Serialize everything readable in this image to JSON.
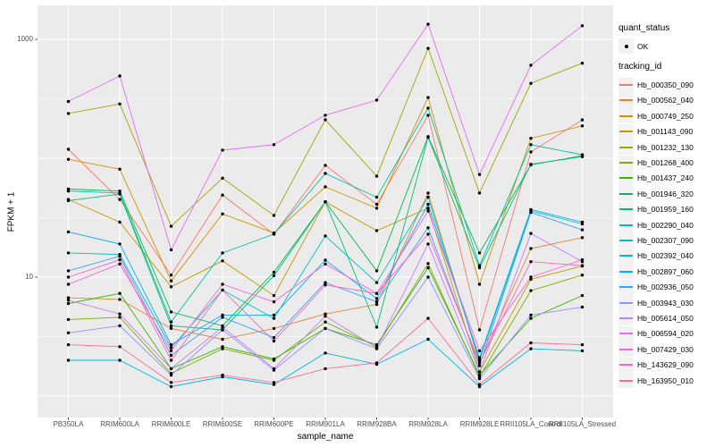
{
  "figure": {
    "background": "#FFFFFF",
    "panel_background": "#EBEBEB",
    "gridline_color": "#FFFFFF",
    "tick_color": "#333333",
    "tick_label_color": "#4D4D4D",
    "point_color": "#000000"
  },
  "legend": {
    "quant_status_title": "quant_status",
    "ok_label": "OK",
    "tracking_id_title": "tracking_id"
  },
  "chart_data": {
    "type": "line",
    "title": "",
    "x_axis_label": "sample_name",
    "y_axis_label": "FPKM + 1",
    "y_scale": "log10",
    "y_ticks": [
      {
        "label": "1000",
        "value": 1000
      },
      {
        "label": "10",
        "value": 10
      }
    ],
    "y_major_gridlines": [
      1,
      10,
      100,
      1000
    ],
    "y_minor_gridlines": [
      3.162,
      31.62,
      316.2
    ],
    "legend_position": "right",
    "quant_status": "OK",
    "categories": [
      "PB350LA",
      "RRIM600LA",
      "RRIM600LE",
      "RRIM600SE",
      "RRIM600PE",
      "RRIM901LA",
      "RRIM928BA",
      "RRIM928LA",
      "RRIM928LE",
      "RRII105LA_Control",
      "RRII105LA_Stressed"
    ],
    "series": [
      {
        "name": "Hb_000350_090",
        "color": "#F8766D",
        "values": [
          119,
          45,
          10.4,
          49,
          23,
          87,
          41,
          230,
          3.6,
          113,
          210
        ]
      },
      {
        "name": "Hb_000562_040",
        "color": "#EA8331",
        "values": [
          6.7,
          6.5,
          3.7,
          3.0,
          3.7,
          4.9,
          5.9,
          51,
          1.9,
          17.4,
          21.5
        ]
      },
      {
        "name": "Hb_000749_250",
        "color": "#D89000",
        "values": [
          98,
          81,
          9.3,
          34,
          23.5,
          57.5,
          38,
          324,
          8.7,
          147,
          187
        ]
      },
      {
        "name": "Hb_001143_090",
        "color": "#C09B00",
        "values": [
          45,
          29,
          8.3,
          13.7,
          7.0,
          43,
          24.6,
          38,
          1.6,
          9.6,
          12.4
        ]
      },
      {
        "name": "Hb_001232_130",
        "color": "#A3A500",
        "values": [
          238,
          286,
          26.8,
          68,
          33,
          211,
          70.6,
          840,
          51,
          427,
          630
        ]
      },
      {
        "name": "Hb_001268_400",
        "color": "#7CAE00",
        "values": [
          4.4,
          4.6,
          1.55,
          2.5,
          2.0,
          4.2,
          2.6,
          13,
          1.45,
          7.7,
          10.4
        ]
      },
      {
        "name": "Hb_001437_240",
        "color": "#39B600",
        "values": [
          6.0,
          7.3,
          1.7,
          2.6,
          2.05,
          3.7,
          2.7,
          12,
          1.5,
          4.5,
          7.0
        ]
      },
      {
        "name": "Hb_001946_320",
        "color": "#00BB4E",
        "values": [
          55,
          53,
          5.1,
          3.9,
          11,
          43,
          11.3,
          152,
          16,
          88,
          105
        ]
      },
      {
        "name": "Hb_001959_160",
        "color": "#00BF7D",
        "values": [
          44,
          50,
          3.9,
          3.6,
          10.3,
          43,
          3.8,
          150,
          12,
          89,
          103
        ]
      },
      {
        "name": "Hb_002290_040",
        "color": "#00C1A3",
        "values": [
          53,
          51,
          4.2,
          16,
          23,
          74.5,
          47,
          264,
          12.5,
          130,
          107
        ]
      },
      {
        "name": "Hb_002307_090",
        "color": "#00BFC4",
        "values": [
          16,
          15.5,
          2.55,
          7.8,
          4.5,
          22.2,
          9.0,
          47,
          2.0,
          36,
          28
        ]
      },
      {
        "name": "Hb_002392_040",
        "color": "#00BAE0",
        "values": [
          2.0,
          2.0,
          1.2,
          1.45,
          1.25,
          2.3,
          1.85,
          3.0,
          1.2,
          2.5,
          2.4
        ]
      },
      {
        "name": "Hb_002897_060",
        "color": "#00B0F6",
        "values": [
          24,
          19,
          2.7,
          4.8,
          4.8,
          13.9,
          6.6,
          41,
          2.1,
          37,
          29
        ]
      },
      {
        "name": "Hb_002936_050",
        "color": "#35A2FF",
        "values": [
          11.3,
          15,
          2.2,
          4.6,
          3.1,
          9.0,
          6.2,
          26,
          1.8,
          35,
          25
        ]
      },
      {
        "name": "Hb_003943_030",
        "color": "#9590FF",
        "values": [
          3.4,
          3.9,
          1.5,
          3.6,
          1.65,
          3.7,
          2.5,
          10,
          1.4,
          4.8,
          5.6
        ]
      },
      {
        "name": "Hb_005614_050",
        "color": "#C77CFF",
        "values": [
          6.4,
          4.9,
          1.7,
          3.8,
          1.7,
          4.7,
          2.55,
          19,
          1.6,
          23.3,
          13.5
        ]
      },
      {
        "name": "Hb_006594_020",
        "color": "#E76BF3",
        "values": [
          300,
          492,
          17,
          117,
          130,
          230,
          308,
          1340,
          73,
          605,
          1300
        ]
      },
      {
        "name": "Hb_007429_030",
        "color": "#FA62DB",
        "values": [
          8.7,
          12.9,
          2.4,
          8.7,
          6.2,
          12.9,
          7.3,
          36,
          2.4,
          10,
          14
        ]
      },
      {
        "name": "Hb_143629_090",
        "color": "#FF62BC",
        "values": [
          10,
          14,
          2.0,
          7.8,
          2.9,
          8.6,
          7.3,
          23,
          1.9,
          13.5,
          12.5
        ]
      },
      {
        "name": "Hb_163950_010",
        "color": "#FF6A98",
        "values": [
          2.7,
          2.6,
          1.3,
          1.5,
          1.3,
          1.7,
          1.9,
          4.5,
          1.25,
          2.8,
          2.7
        ]
      }
    ]
  }
}
